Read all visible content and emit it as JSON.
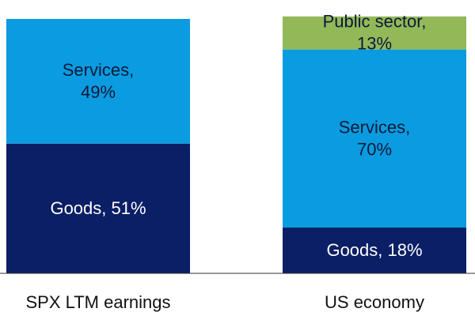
{
  "chart_data": {
    "type": "bar",
    "stacked": true,
    "normalized": true,
    "categories": [
      "SPX LTM earnings",
      "US economy"
    ],
    "series": [
      {
        "name": "Goods",
        "values": [
          51,
          18
        ],
        "color": "#0b1f66",
        "text_color": "#ffffff"
      },
      {
        "name": "Services",
        "values": [
          49,
          70
        ],
        "color": "#0b9be0",
        "text_color": "#0a1a3a"
      },
      {
        "name": "Public sector",
        "values": [
          0,
          13
        ],
        "color": "#93b858",
        "text_color": "#0a1a3a"
      }
    ],
    "labels": [
      [
        "Goods, 51%",
        "Goods, 18%"
      ],
      [
        [
          "Services,",
          "49%"
        ],
        [
          "Services,",
          "70%"
        ]
      ],
      [
        null,
        [
          "Public sector,",
          "13%"
        ]
      ]
    ],
    "ylim": [
      0,
      100
    ],
    "grid": false,
    "legend": "none",
    "baseline_color": "#333333"
  }
}
